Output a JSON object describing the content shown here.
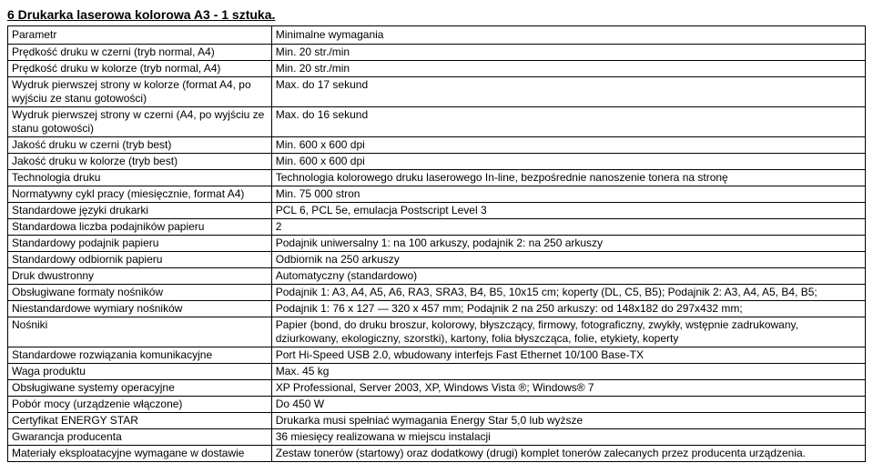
{
  "title": "6 Drukarka laserowa kolorowa A3 - 1 sztuka.",
  "header": {
    "param": "Parametr",
    "req": "Minimalne wymagania"
  },
  "rows": [
    {
      "p": "Prędkość druku w czerni (tryb normal, A4)",
      "v": "Min. 20 str./min"
    },
    {
      "p": "Prędkość druku w kolorze (tryb normal, A4)",
      "v": "Min. 20 str./min"
    },
    {
      "p": "Wydruk pierwszej strony w kolorze (format A4, po wyjściu ze stanu gotowości)",
      "v": "Max. do 17 sekund"
    },
    {
      "p": "Wydruk pierwszej strony w czerni (A4, po wyjściu ze stanu gotowości)",
      "v": "Max. do 16 sekund"
    },
    {
      "p": "Jakość druku w czerni (tryb best)",
      "v": "Min. 600 x 600 dpi"
    },
    {
      "p": "Jakość druku w kolorze (tryb best)",
      "v": "Min. 600 x 600 dpi"
    },
    {
      "p": "Technologia druku",
      "v": "Technologia kolorowego druku laserowego In-line, bezpośrednie nanoszenie tonera na stronę"
    },
    {
      "p": "Normatywny cykl pracy (miesięcznie, format A4)",
      "v": "Min. 75 000 stron"
    },
    {
      "p": "Standardowe języki drukarki",
      "v": "PCL 6, PCL 5e, emulacja Postscript Level 3"
    },
    {
      "p": "Standardowa liczba podajników papieru",
      "v": "2"
    },
    {
      "p": "Standardowy podajnik papieru",
      "v": "Podajnik uniwersalny 1: na 100 arkuszy, podajnik 2: na 250 arkuszy"
    },
    {
      "p": "Standardowy odbiornik papieru",
      "v": "Odbiornik na 250 arkuszy"
    },
    {
      "p": "Druk dwustronny",
      "v": "Automatyczny (standardowo)"
    },
    {
      "p": "Obsługiwane formaty nośników",
      "v": "Podajnik 1: A3, A4, A5, A6, RA3, SRA3, B4, B5, 10x15 cm; koperty (DL, C5, B5); Podajnik 2: A3, A4, A5, B4, B5;"
    },
    {
      "p": "Niestandardowe wymiary nośników",
      "v": "Podajnik 1: 76 x 127 — 320 x 457 mm; Podajnik 2 na 250 arkuszy: od 148x182 do 297x432 mm;"
    },
    {
      "p": "Nośniki",
      "v": "Papier (bond, do druku broszur, kolorowy, błyszczący, firmowy, fotograficzny, zwykły, wstępnie zadrukowany, dziurkowany, ekologiczny, szorstki), kartony, folia błyszcząca, folie, etykiety, koperty"
    },
    {
      "p": "Standardowe rozwiązania komunikacyjne",
      "v": "Port Hi-Speed USB 2.0, wbudowany interfejs Fast Ethernet 10/100 Base-TX"
    },
    {
      "p": "Waga produktu",
      "v": "Max. 45 kg"
    },
    {
      "p": "Obsługiwane systemy operacyjne",
      "v": "XP Professional, Server 2003, XP, Windows Vista ®; Windows® 7"
    },
    {
      "p": "Pobór mocy (urządzenie włączone)",
      "v": "Do 450 W"
    },
    {
      "p": "Certyfikat ENERGY STAR",
      "v": "Drukarka musi spełniać wymagania Energy Star 5,0 lub wyższe"
    },
    {
      "p": "Gwarancja producenta",
      "v": "36 miesięcy realizowana w miejscu instalacji"
    },
    {
      "p": "Materiały eksploatacyjne wymagane w dostawie",
      "v": "Zestaw tonerów (startowy) oraz dodatkowy (drugi) komplet tonerów zalecanych przez producenta urządzenia."
    }
  ]
}
